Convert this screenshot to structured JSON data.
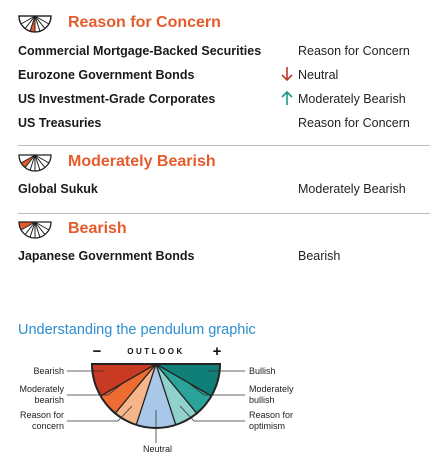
{
  "sections": [
    {
      "title": "Reason for Concern",
      "rows": [
        {
          "name": "Commercial Mortgage-Backed Securities",
          "status": "Reason for Concern",
          "arrow": ""
        },
        {
          "name": "Eurozone Government Bonds",
          "status": "Neutral",
          "arrow": "down"
        },
        {
          "name": "US Investment-Grade Corporates",
          "status": "Moderately Bearish",
          "arrow": "up"
        },
        {
          "name": "US Treasuries",
          "status": "Reason for Concern",
          "arrow": ""
        }
      ]
    },
    {
      "title": "Moderately Bearish",
      "rows": [
        {
          "name": "Global Sukuk",
          "status": "Moderately Bearish",
          "arrow": ""
        }
      ]
    },
    {
      "title": "Bearish",
      "rows": [
        {
          "name": "Japanese Government Bonds",
          "status": "Bearish",
          "arrow": ""
        }
      ]
    }
  ],
  "colors": {
    "accent": "#e55b2b",
    "arrow_down": "#c0392b",
    "arrow_up": "#1a9a86",
    "title_blue": "#2b8ecf",
    "bearish": "#c83a23",
    "moderately_bearish": "#ee6c32",
    "reason_for_concern": "#f7b68a",
    "neutral": "#a9c7e8",
    "reason_for_optimism": "#8fd2cd",
    "moderately_bullish": "#2aa39a",
    "bullish": "#0f7f78"
  },
  "explainer": {
    "title": "Understanding the pendulum graphic",
    "outlook_label": "OUTLOOK",
    "minus": "−",
    "plus": "+",
    "labels": {
      "bearish": "Bearish",
      "moderately_bearish": "Moderately\nbearish",
      "reason_for_concern": "Reason for\nconcern",
      "neutral": "Neutral",
      "reason_for_optimism": "Reason for\noptimism",
      "moderately_bullish": "Moderately\nbullish",
      "bullish": "Bullish"
    }
  }
}
